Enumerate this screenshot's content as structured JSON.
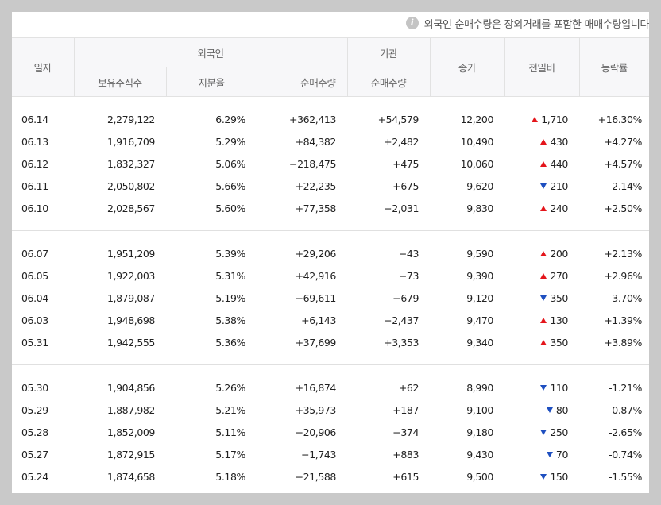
{
  "notice": {
    "icon": "info-icon",
    "icon_glyph": "i",
    "text": "외국인 순매수량은 장외거래를 포함한 매매수량입니다."
  },
  "headers": {
    "date": "일자",
    "foreign": "외국인",
    "institution": "기관",
    "close": "종가",
    "change": "전일비",
    "rate": "등락률",
    "holdings": "보유주식수",
    "ratio": "지분율",
    "foreign_net": "순매수량",
    "inst_net": "순매수량"
  },
  "colors": {
    "up": "#e4151b",
    "down": "#1e4fc0"
  },
  "groups": [
    [
      {
        "date": "06.14",
        "holdings": "2,279,122",
        "ratio": "6.29%",
        "foreign_net": "+362,413",
        "inst_net": "+54,579",
        "close": "12,200",
        "change": "1,710",
        "dir": "up",
        "rate": "+16.30%"
      },
      {
        "date": "06.13",
        "holdings": "1,916,709",
        "ratio": "5.29%",
        "foreign_net": "+84,382",
        "inst_net": "+2,482",
        "close": "10,490",
        "change": "430",
        "dir": "up",
        "rate": "+4.27%"
      },
      {
        "date": "06.12",
        "holdings": "1,832,327",
        "ratio": "5.06%",
        "foreign_net": "−218,475",
        "inst_net": "+475",
        "close": "10,060",
        "change": "440",
        "dir": "up",
        "rate": "+4.57%"
      },
      {
        "date": "06.11",
        "holdings": "2,050,802",
        "ratio": "5.66%",
        "foreign_net": "+22,235",
        "inst_net": "+675",
        "close": "9,620",
        "change": "210",
        "dir": "down",
        "rate": "-2.14%"
      },
      {
        "date": "06.10",
        "holdings": "2,028,567",
        "ratio": "5.60%",
        "foreign_net": "+77,358",
        "inst_net": "−2,031",
        "close": "9,830",
        "change": "240",
        "dir": "up",
        "rate": "+2.50%"
      }
    ],
    [
      {
        "date": "06.07",
        "holdings": "1,951,209",
        "ratio": "5.39%",
        "foreign_net": "+29,206",
        "inst_net": "−43",
        "close": "9,590",
        "change": "200",
        "dir": "up",
        "rate": "+2.13%"
      },
      {
        "date": "06.05",
        "holdings": "1,922,003",
        "ratio": "5.31%",
        "foreign_net": "+42,916",
        "inst_net": "−73",
        "close": "9,390",
        "change": "270",
        "dir": "up",
        "rate": "+2.96%"
      },
      {
        "date": "06.04",
        "holdings": "1,879,087",
        "ratio": "5.19%",
        "foreign_net": "−69,611",
        "inst_net": "−679",
        "close": "9,120",
        "change": "350",
        "dir": "down",
        "rate": "-3.70%"
      },
      {
        "date": "06.03",
        "holdings": "1,948,698",
        "ratio": "5.38%",
        "foreign_net": "+6,143",
        "inst_net": "−2,437",
        "close": "9,470",
        "change": "130",
        "dir": "up",
        "rate": "+1.39%"
      },
      {
        "date": "05.31",
        "holdings": "1,942,555",
        "ratio": "5.36%",
        "foreign_net": "+37,699",
        "inst_net": "+3,353",
        "close": "9,340",
        "change": "350",
        "dir": "up",
        "rate": "+3.89%"
      }
    ],
    [
      {
        "date": "05.30",
        "holdings": "1,904,856",
        "ratio": "5.26%",
        "foreign_net": "+16,874",
        "inst_net": "+62",
        "close": "8,990",
        "change": "110",
        "dir": "down",
        "rate": "-1.21%"
      },
      {
        "date": "05.29",
        "holdings": "1,887,982",
        "ratio": "5.21%",
        "foreign_net": "+35,973",
        "inst_net": "+187",
        "close": "9,100",
        "change": "80",
        "dir": "down",
        "rate": "-0.87%"
      },
      {
        "date": "05.28",
        "holdings": "1,852,009",
        "ratio": "5.11%",
        "foreign_net": "−20,906",
        "inst_net": "−374",
        "close": "9,180",
        "change": "250",
        "dir": "down",
        "rate": "-2.65%"
      },
      {
        "date": "05.27",
        "holdings": "1,872,915",
        "ratio": "5.17%",
        "foreign_net": "−1,743",
        "inst_net": "+883",
        "close": "9,430",
        "change": "70",
        "dir": "down",
        "rate": "-0.74%"
      },
      {
        "date": "05.24",
        "holdings": "1,874,658",
        "ratio": "5.18%",
        "foreign_net": "−21,588",
        "inst_net": "+615",
        "close": "9,500",
        "change": "150",
        "dir": "down",
        "rate": "-1.55%"
      }
    ]
  ]
}
